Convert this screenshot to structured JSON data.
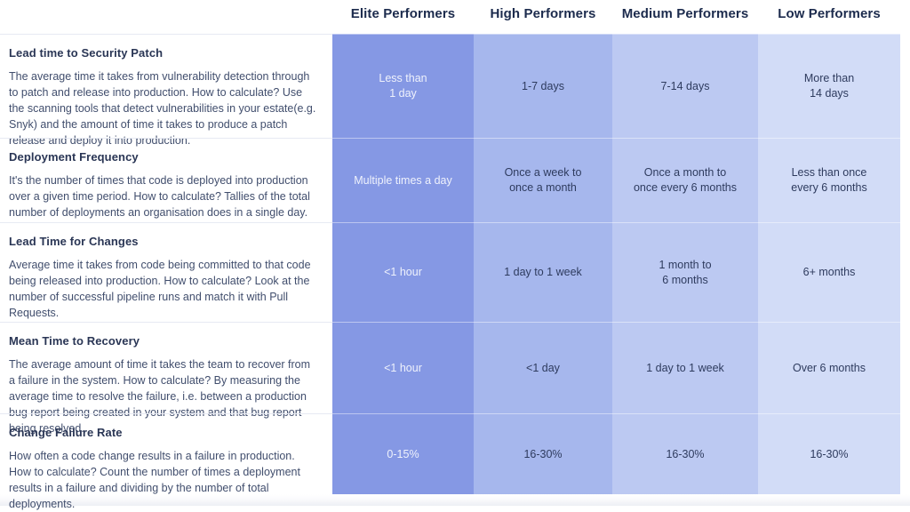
{
  "palette": {
    "elite_bg": "#8598E4",
    "high_bg": "#A6B7ED",
    "medium_bg": "#BCC9F2",
    "low_bg": "#D2DCF7",
    "elite_text": "#EFF2FC",
    "cell_text": "#2E3B5E",
    "header_text": "#1C2B4D"
  },
  "chart_data": {
    "type": "table",
    "columns": [
      "Elite Performers",
      "High Performers",
      "Medium Performers",
      "Low Performers"
    ],
    "rows": [
      {
        "metric": "Lead time to Security Patch",
        "description": "The average time it takes from vulnerability detection through to patch and release into production. How to calculate? Use the scanning tools that detect vulnerabilities in your estate(e.g. Snyk) and the amount of time it takes to produce a patch release and deploy it into production.",
        "values": [
          "Less than\n1 day",
          "1-7 days",
          "7-14 days",
          "More than\n14 days"
        ]
      },
      {
        "metric": "Deployment Frequency",
        "description": "It's the number of times that code is deployed into production over a given time period. How to calculate? Tallies of the total number of deployments an organisation does in a single day.",
        "values": [
          "Multiple times a day",
          "Once a week to\nonce a month",
          "Once a month to\nonce every 6 months",
          "Less than once\nevery 6 months"
        ]
      },
      {
        "metric": "Lead Time for Changes",
        "description": "Average time it takes from code being committed to that code being released into production. How to calculate? Look at the number of successful pipeline runs and match it with Pull Requests.",
        "values": [
          "<1 hour",
          "1 day to 1 week",
          "1 month to\n6 months",
          "6+ months"
        ]
      },
      {
        "metric": "Mean Time to Recovery",
        "description": "The average amount of time it takes the team to recover from a failure in the system. How to calculate? By measuring the average time to resolve the failure, i.e. between a production bug report being created in your system and that bug report being resolved.",
        "values": [
          "<1 hour",
          "<1 day",
          "1 day to 1 week",
          "Over 6 months"
        ]
      },
      {
        "metric": "Change Failure Rate",
        "description": "How often a code change results in a failure in production. How to calculate? Count the number of times a deployment results in a failure and dividing by the number of total deployments.",
        "values": [
          "0-15%",
          "16-30%",
          "16-30%",
          "16-30%"
        ]
      }
    ]
  }
}
